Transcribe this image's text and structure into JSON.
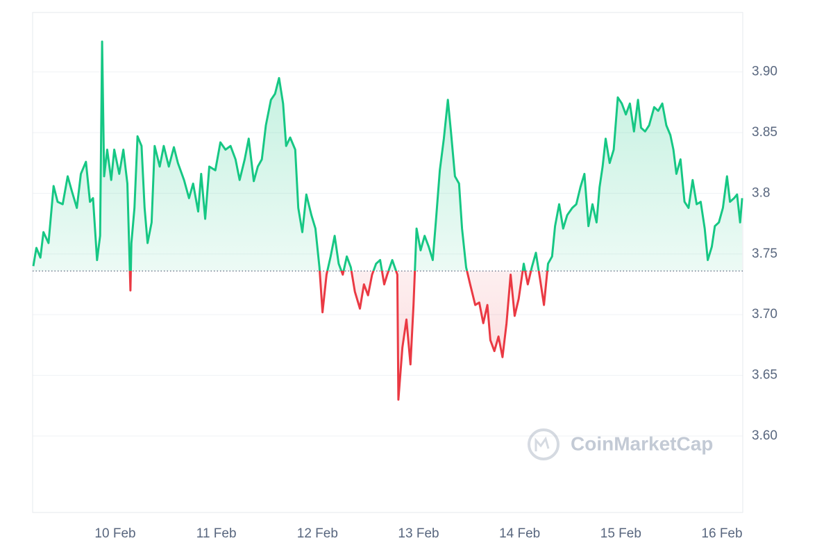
{
  "chart_data": {
    "type": "line",
    "watermark": "CoinMarketCap",
    "x": [
      0.19,
      0.22,
      0.26,
      0.29,
      0.34,
      0.39,
      0.43,
      0.48,
      0.53,
      0.57,
      0.62,
      0.66,
      0.71,
      0.75,
      0.78,
      0.82,
      0.85,
      0.87,
      0.89,
      0.92,
      0.96,
      0.99,
      1.04,
      1.08,
      1.12,
      1.15,
      1.16,
      1.19,
      1.22,
      1.26,
      1.29,
      1.32,
      1.36,
      1.39,
      1.44,
      1.48,
      1.53,
      1.58,
      1.62,
      1.68,
      1.73,
      1.77,
      1.82,
      1.85,
      1.89,
      1.93,
      1.99,
      2.04,
      2.09,
      2.14,
      2.19,
      2.23,
      2.28,
      2.32,
      2.37,
      2.41,
      2.45,
      2.49,
      2.54,
      2.58,
      2.62,
      2.66,
      2.69,
      2.73,
      2.78,
      2.81,
      2.85,
      2.89,
      2.94,
      2.98,
      3.02,
      3.05,
      3.09,
      3.13,
      3.17,
      3.21,
      3.25,
      3.29,
      3.33,
      3.37,
      3.42,
      3.46,
      3.5,
      3.54,
      3.58,
      3.62,
      3.66,
      3.69,
      3.74,
      3.79,
      3.8,
      3.84,
      3.88,
      3.92,
      3.95,
      3.98,
      4.02,
      4.06,
      4.1,
      4.14,
      4.17,
      4.21,
      4.25,
      4.29,
      4.32,
      4.36,
      4.4,
      4.43,
      4.47,
      4.51,
      4.56,
      4.6,
      4.64,
      4.68,
      4.71,
      4.75,
      4.79,
      4.83,
      4.87,
      4.91,
      4.95,
      4.99,
      5.04,
      5.08,
      5.12,
      5.16,
      5.2,
      5.24,
      5.28,
      5.32,
      5.35,
      5.39,
      5.43,
      5.47,
      5.52,
      5.56,
      5.6,
      5.64,
      5.68,
      5.72,
      5.76,
      5.79,
      5.82,
      5.85,
      5.89,
      5.93,
      5.97,
      6.01,
      6.05,
      6.09,
      6.13,
      6.17,
      6.2,
      6.24,
      6.28,
      6.33,
      6.37,
      6.41,
      6.45,
      6.49,
      6.52,
      6.55,
      6.59,
      6.63,
      6.67,
      6.71,
      6.75,
      6.79,
      6.83,
      6.86,
      6.9,
      6.93,
      6.97,
      7.01,
      7.05,
      7.08,
      7.12,
      7.15,
      7.18,
      7.2
    ],
    "values": [
      3.74,
      3.755,
      3.747,
      3.768,
      3.759,
      3.806,
      3.793,
      3.791,
      3.814,
      3.802,
      3.788,
      3.816,
      3.826,
      3.793,
      3.796,
      3.745,
      3.765,
      3.925,
      3.814,
      3.836,
      3.811,
      3.836,
      3.816,
      3.836,
      3.808,
      3.72,
      3.759,
      3.788,
      3.847,
      3.839,
      3.788,
      3.759,
      3.776,
      3.839,
      3.822,
      3.839,
      3.822,
      3.838,
      3.825,
      3.811,
      3.796,
      3.808,
      3.785,
      3.816,
      3.779,
      3.822,
      3.819,
      3.842,
      3.836,
      3.839,
      3.828,
      3.811,
      3.828,
      3.845,
      3.81,
      3.822,
      3.828,
      3.856,
      3.877,
      3.882,
      3.895,
      3.874,
      3.839,
      3.846,
      3.836,
      3.788,
      3.768,
      3.799,
      3.782,
      3.771,
      3.739,
      3.702,
      3.733,
      3.748,
      3.765,
      3.742,
      3.733,
      3.748,
      3.739,
      3.719,
      3.705,
      3.725,
      3.716,
      3.733,
      3.742,
      3.745,
      3.725,
      3.733,
      3.745,
      3.733,
      3.63,
      3.673,
      3.696,
      3.659,
      3.708,
      3.771,
      3.753,
      3.765,
      3.756,
      3.745,
      3.776,
      3.819,
      3.845,
      3.877,
      3.851,
      3.814,
      3.808,
      3.771,
      3.739,
      3.725,
      3.708,
      3.71,
      3.693,
      3.708,
      3.679,
      3.67,
      3.682,
      3.665,
      3.693,
      3.733,
      3.699,
      3.713,
      3.742,
      3.725,
      3.739,
      3.751,
      3.73,
      3.708,
      3.742,
      3.748,
      3.773,
      3.791,
      3.771,
      3.782,
      3.788,
      3.791,
      3.805,
      3.816,
      3.773,
      3.791,
      3.776,
      3.805,
      3.822,
      3.845,
      3.825,
      3.836,
      3.879,
      3.874,
      3.865,
      3.874,
      3.851,
      3.877,
      3.854,
      3.851,
      3.856,
      3.871,
      3.868,
      3.874,
      3.856,
      3.848,
      3.836,
      3.816,
      3.828,
      3.793,
      3.788,
      3.811,
      3.791,
      3.793,
      3.771,
      3.745,
      3.756,
      3.773,
      3.776,
      3.788,
      3.814,
      3.793,
      3.796,
      3.799,
      3.776,
      3.796
    ],
    "baseline": 3.736,
    "color_up": "#16c784",
    "color_down": "#ea3943",
    "xlim": [
      0.183,
      7.206
    ],
    "xticks": [
      {
        "value": 1,
        "label": "10 Feb"
      },
      {
        "value": 2,
        "label": "11 Feb"
      },
      {
        "value": 3,
        "label": "12 Feb"
      },
      {
        "value": 4,
        "label": "13 Feb"
      },
      {
        "value": 5,
        "label": "14 Feb"
      },
      {
        "value": 6,
        "label": "15 Feb"
      },
      {
        "value": 7,
        "label": "16 Feb"
      }
    ],
    "ylim": [
      3.537,
      3.949
    ],
    "yticks": [
      {
        "value": 3.6,
        "label": "3.60"
      },
      3.65,
      {
        "value": 3.7,
        "label": "3.70"
      },
      3.75,
      3.8,
      3.85,
      {
        "value": 3.9,
        "label": "3.90"
      }
    ],
    "grid": true
  }
}
